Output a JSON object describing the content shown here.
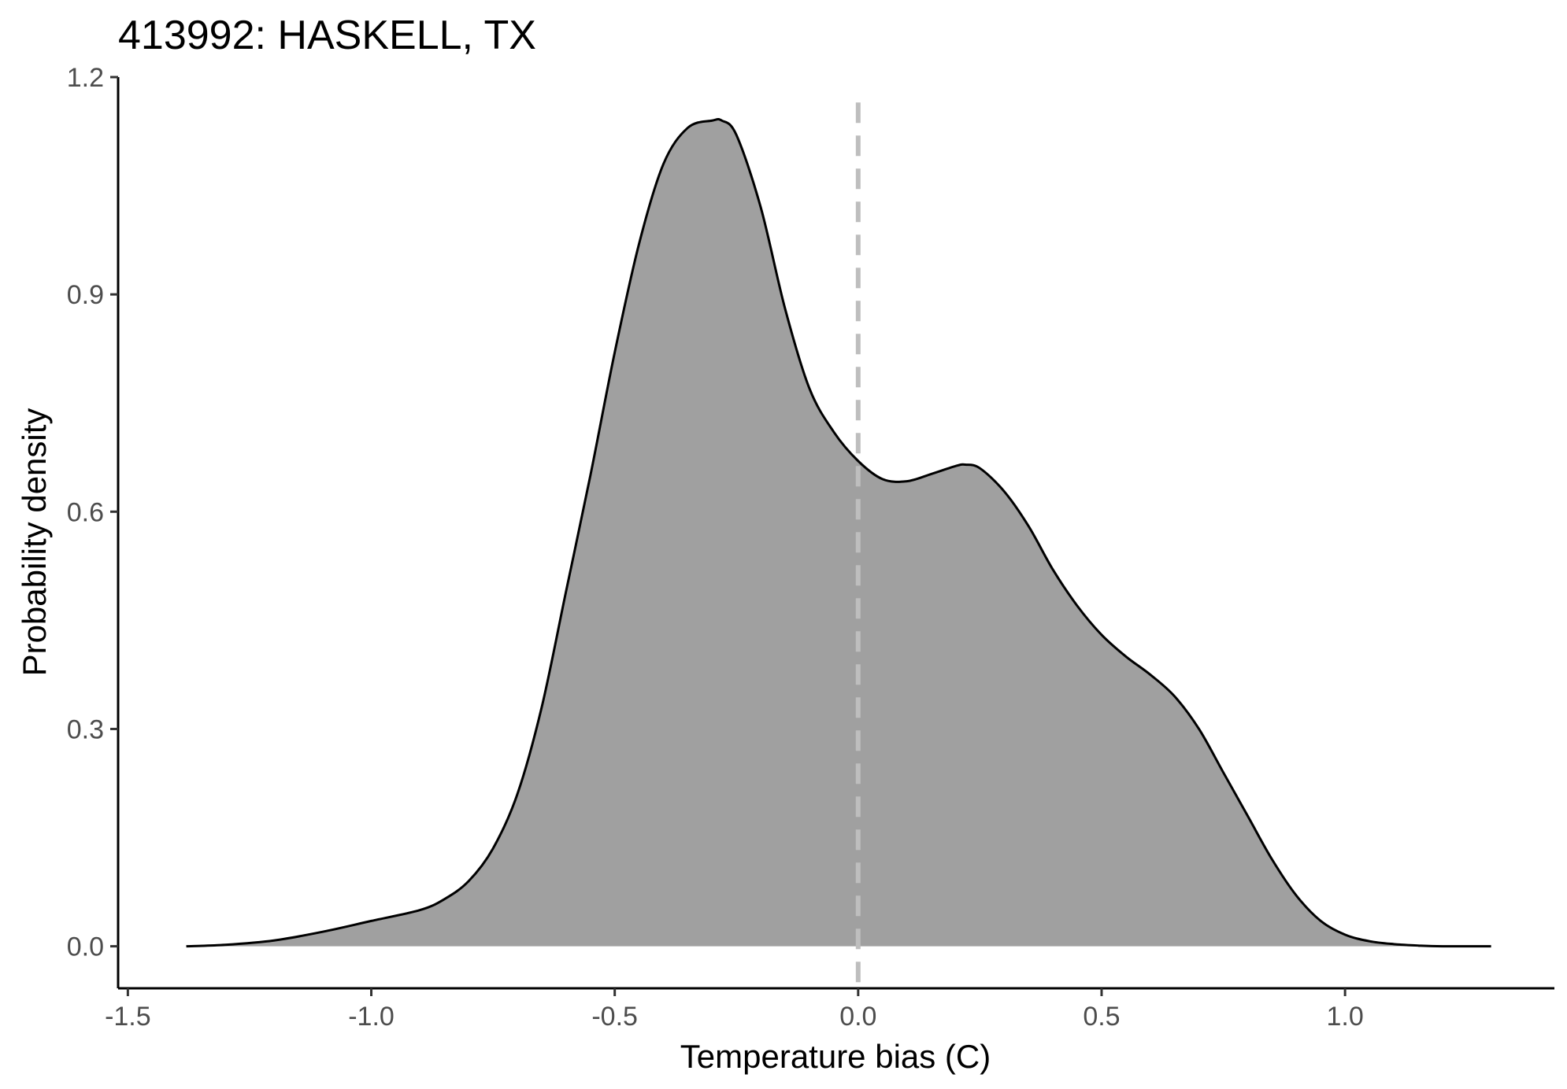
{
  "chart_data": {
    "type": "area",
    "title": "413992: HASKELL, TX",
    "xlabel": "Temperature bias (C)",
    "ylabel": "Probability density",
    "xlim": [
      -1.52,
      1.43
    ],
    "ylim": [
      -0.058,
      1.2
    ],
    "x_ticks": [
      -1.5,
      -1.0,
      -0.5,
      0.0,
      0.5,
      1.0
    ],
    "x_tick_labels": [
      "-1.5",
      "-1.0",
      "-0.5",
      "0.0",
      "0.5",
      "1.0"
    ],
    "y_ticks": [
      0.0,
      0.3,
      0.6,
      0.9,
      1.2
    ],
    "y_tick_labels": [
      "0.0",
      "0.3",
      "0.6",
      "0.9",
      "1.2"
    ],
    "grid": false,
    "legend": "none",
    "reference_line": {
      "x": 0.0,
      "style": "dashed",
      "color": "#bebebe"
    },
    "fill_color": "#a0a0a0",
    "line_color": "#000000",
    "series": [
      {
        "x": [
          -1.38,
          -1.3,
          -1.2,
          -1.1,
          -1.0,
          -0.9,
          -0.85,
          -0.8,
          -0.75,
          -0.7,
          -0.65,
          -0.6,
          -0.55,
          -0.5,
          -0.45,
          -0.4,
          -0.35,
          -0.3,
          -0.28,
          -0.25,
          -0.2,
          -0.15,
          -0.1,
          -0.05,
          0.0,
          0.05,
          0.1,
          0.15,
          0.2,
          0.22,
          0.25,
          0.3,
          0.35,
          0.4,
          0.45,
          0.5,
          0.55,
          0.6,
          0.65,
          0.7,
          0.75,
          0.8,
          0.85,
          0.9,
          0.95,
          1.0,
          1.05,
          1.1,
          1.15,
          1.2,
          1.3
        ],
        "y": [
          0.0,
          0.002,
          0.008,
          0.02,
          0.035,
          0.05,
          0.065,
          0.09,
          0.135,
          0.21,
          0.33,
          0.49,
          0.65,
          0.82,
          0.97,
          1.08,
          1.13,
          1.14,
          1.14,
          1.12,
          1.02,
          0.88,
          0.77,
          0.71,
          0.67,
          0.645,
          0.642,
          0.652,
          0.663,
          0.665,
          0.66,
          0.628,
          0.58,
          0.52,
          0.47,
          0.43,
          0.4,
          0.375,
          0.345,
          0.3,
          0.24,
          0.18,
          0.12,
          0.07,
          0.035,
          0.016,
          0.007,
          0.003,
          0.001,
          0.0,
          0.0
        ]
      }
    ]
  }
}
